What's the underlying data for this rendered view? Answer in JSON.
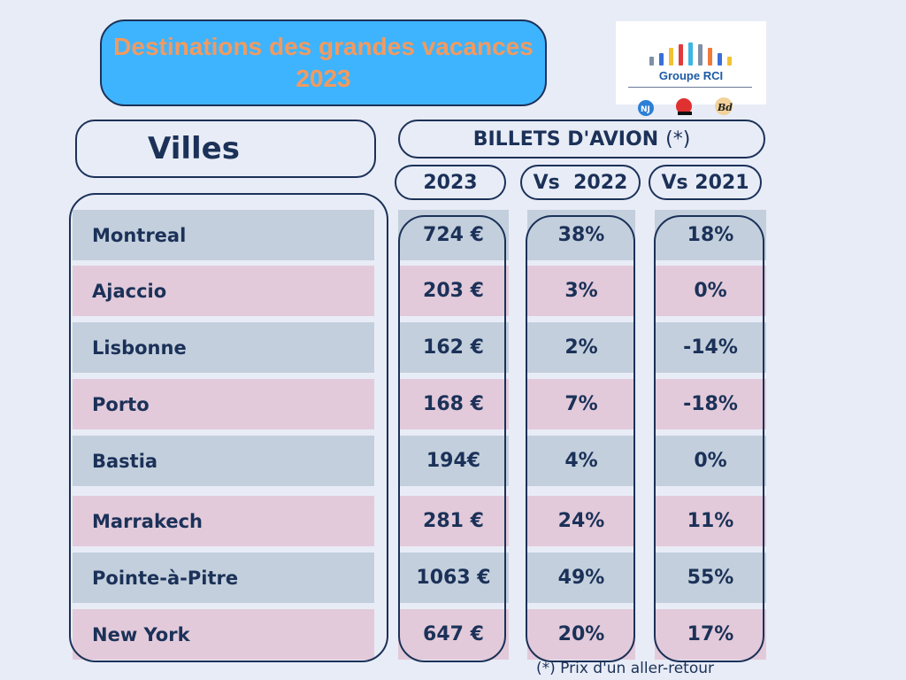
{
  "title": "Destinations des grandes vacances 2023",
  "logo": {
    "text": "Groupe RCI",
    "bar_colors": [
      "#7f8fa6",
      "#3a6fd8",
      "#f3c233",
      "#e23a3a",
      "#3bb6e6",
      "#7f8fa6",
      "#f07a3a",
      "#3a6fd8",
      "#f3c233"
    ]
  },
  "headers": {
    "villes": "Villes",
    "billets": "BILLETS D'AVION",
    "billets_star": "(*)",
    "col_2023": "2023",
    "col_2022": "Vs  2022",
    "col_2021": "Vs 2021"
  },
  "footnote": "(*) Prix d'un aller-retour",
  "colors": {
    "row_blue": "#c3cfdc",
    "row_pink": "#e2cada",
    "title_bg": "#3eb4ff",
    "title_text": "#f29a5f",
    "ink": "#1b3158"
  },
  "chart_data": {
    "type": "table",
    "title": "Destinations des grandes vacances 2023",
    "columns": [
      "Villes",
      "2023",
      "Vs  2022",
      "Vs 2021"
    ],
    "rows": [
      {
        "city": "Montreal",
        "price": "724 €",
        "vs2022": "38%",
        "vs2021": "18%"
      },
      {
        "city": "Ajaccio",
        "price": "203 €",
        "vs2022": "3%",
        "vs2021": "0%"
      },
      {
        "city": "Lisbonne",
        "price": "162 €",
        "vs2022": "2%",
        "vs2021": "-14%"
      },
      {
        "city": "Porto",
        "price": "168 €",
        "vs2022": "7%",
        "vs2021": "-18%"
      },
      {
        "city": "Bastia",
        "price": "194€",
        "vs2022": "4%",
        "vs2021": "0%"
      },
      {
        "city": "Marrakech",
        "price": "281 €",
        "vs2022": "24%",
        "vs2021": "11%"
      },
      {
        "city": "Pointe-à-Pitre",
        "price": "1063 €",
        "vs2022": "49%",
        "vs2021": "55%"
      },
      {
        "city": "New York",
        "price": "647 €",
        "vs2022": "20%",
        "vs2021": "17%"
      }
    ]
  }
}
